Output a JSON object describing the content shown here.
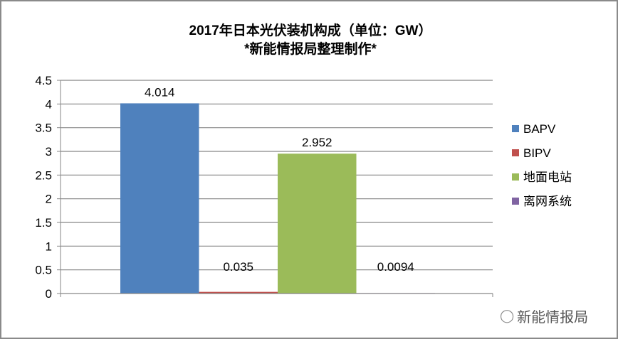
{
  "chart_data": {
    "type": "bar",
    "title": "2017年日本光伏装机构成（单位：GW）",
    "subtitle": "*新能情报局整理制作*",
    "categories": [
      ""
    ],
    "series": [
      {
        "name": "BAPV",
        "values": [
          4.014
        ],
        "color": "#4f81bd",
        "label": "4.014"
      },
      {
        "name": "BIPV",
        "values": [
          0.035
        ],
        "color": "#c0504d",
        "label": "0.035"
      },
      {
        "name": "地面电站",
        "values": [
          2.952
        ],
        "color": "#9bbb59",
        "label": "2.952"
      },
      {
        "name": "离网系统",
        "values": [
          0.0094
        ],
        "color": "#8064a2",
        "label": "0.0094"
      }
    ],
    "ylim": [
      0,
      4.5
    ],
    "yticks": [
      "0",
      "0.5",
      "1",
      "1.5",
      "2",
      "2.5",
      "3",
      "3.5",
      "4",
      "4.5"
    ],
    "grid": true,
    "legend_position": "right"
  },
  "watermark": {
    "text": "新能情报局",
    "icon": "wechat-icon"
  }
}
